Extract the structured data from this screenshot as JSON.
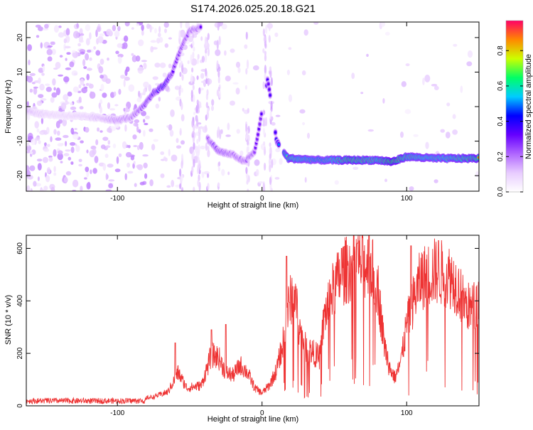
{
  "figure_title": "S174.2026.025.20.18.G21",
  "chart_data": [
    {
      "type": "heatmap",
      "title": "",
      "xlabel": "Height of straight line (km)",
      "ylabel": "Frequency (Hz)",
      "xlim": [
        -163,
        150
      ],
      "ylim": [
        -24.5,
        24.5
      ],
      "xticks": [
        -100,
        0,
        100
      ],
      "yticks": [
        -20,
        -10,
        0,
        10,
        20
      ],
      "colorbar": {
        "label": "Normalized spectral amplitude",
        "range": [
          0,
          0.97
        ],
        "ticks": [
          0,
          0.2,
          0.4,
          0.6,
          0.8
        ],
        "tick_labels": [
          "0.0",
          "0.2",
          "0.4",
          "0.6",
          "0.8"
        ],
        "colormap": [
          "#ffffff",
          "#e8ccff",
          "#b066ff",
          "#6600ff",
          "#0000ff",
          "#00ccff",
          "#00ff66",
          "#ccff00",
          "#ff8800",
          "#ff0066"
        ]
      },
      "ridge": [
        {
          "x": -163,
          "y": -1,
          "a": 0.2
        },
        {
          "x": -155,
          "y": -2,
          "a": 0.15
        },
        {
          "x": -140,
          "y": -2.5,
          "a": 0.12
        },
        {
          "x": -120,
          "y": -3,
          "a": 0.15
        },
        {
          "x": -108,
          "y": -3.5,
          "a": 0.2
        },
        {
          "x": -100,
          "y": -4,
          "a": 0.25
        },
        {
          "x": -90,
          "y": -3,
          "a": 0.25
        },
        {
          "x": -82,
          "y": 0,
          "a": 0.35
        },
        {
          "x": -75,
          "y": 4,
          "a": 0.4
        },
        {
          "x": -68,
          "y": 6,
          "a": 0.5
        },
        {
          "x": -62,
          "y": 10,
          "a": 0.35
        },
        {
          "x": -55,
          "y": 18,
          "a": 0.3
        },
        {
          "x": -50,
          "y": 22,
          "a": 0.3
        },
        {
          "x": -42,
          "y": 23,
          "a": 0.3
        },
        {
          "x": -38,
          "y": -9,
          "a": 0.3
        },
        {
          "x": -30,
          "y": -13,
          "a": 0.35
        },
        {
          "x": -20,
          "y": -14,
          "a": 0.3
        },
        {
          "x": -12,
          "y": -16,
          "a": 0.3
        },
        {
          "x": -5,
          "y": -13,
          "a": 0.3
        },
        {
          "x": 4,
          "y": 8,
          "a": 0.35
        },
        {
          "x": 10,
          "y": -10,
          "a": 0.4
        },
        {
          "x": 18,
          "y": -15,
          "a": 0.8
        },
        {
          "x": 40,
          "y": -15.5,
          "a": 0.7
        },
        {
          "x": 60,
          "y": -15.5,
          "a": 0.85
        },
        {
          "x": 80,
          "y": -15.5,
          "a": 0.8
        },
        {
          "x": 90,
          "y": -16,
          "a": 0.9
        },
        {
          "x": 100,
          "y": -14.5,
          "a": 0.8
        },
        {
          "x": 120,
          "y": -15,
          "a": 0.75
        },
        {
          "x": 150,
          "y": -15,
          "a": 0.85
        }
      ]
    },
    {
      "type": "line",
      "title": "",
      "xlabel": "Height of straight line (km)",
      "ylabel": "SNR (10 * v/v)",
      "xlim": [
        -163,
        150
      ],
      "ylim": [
        0,
        650
      ],
      "xticks": [
        -100,
        0,
        100
      ],
      "yticks": [
        0,
        200,
        400,
        600
      ],
      "series": [
        {
          "color": "#ee3333",
          "envelope": [
            {
              "x": -163,
              "y": 15
            },
            {
              "x": -130,
              "y": 18
            },
            {
              "x": -90,
              "y": 25
            },
            {
              "x": -75,
              "y": 35
            },
            {
              "x": -65,
              "y": 55
            },
            {
              "x": -58,
              "y": 130
            },
            {
              "x": -52,
              "y": 70
            },
            {
              "x": -42,
              "y": 80
            },
            {
              "x": -35,
              "y": 200
            },
            {
              "x": -30,
              "y": 190
            },
            {
              "x": -25,
              "y": 130
            },
            {
              "x": -20,
              "y": 120
            },
            {
              "x": -15,
              "y": 160
            },
            {
              "x": -10,
              "y": 130
            },
            {
              "x": -5,
              "y": 70
            },
            {
              "x": 0,
              "y": 50
            },
            {
              "x": 5,
              "y": 80
            },
            {
              "x": 10,
              "y": 140
            },
            {
              "x": 15,
              "y": 260
            },
            {
              "x": 18,
              "y": 380
            },
            {
              "x": 22,
              "y": 460
            },
            {
              "x": 26,
              "y": 300
            },
            {
              "x": 30,
              "y": 230
            },
            {
              "x": 35,
              "y": 210
            },
            {
              "x": 40,
              "y": 190
            },
            {
              "x": 43,
              "y": 350
            },
            {
              "x": 48,
              "y": 440
            },
            {
              "x": 55,
              "y": 520
            },
            {
              "x": 65,
              "y": 560
            },
            {
              "x": 75,
              "y": 550
            },
            {
              "x": 80,
              "y": 470
            },
            {
              "x": 84,
              "y": 260
            },
            {
              "x": 88,
              "y": 150
            },
            {
              "x": 92,
              "y": 110
            },
            {
              "x": 96,
              "y": 170
            },
            {
              "x": 100,
              "y": 320
            },
            {
              "x": 105,
              "y": 420
            },
            {
              "x": 110,
              "y": 500
            },
            {
              "x": 120,
              "y": 530
            },
            {
              "x": 130,
              "y": 510
            },
            {
              "x": 135,
              "y": 470
            },
            {
              "x": 140,
              "y": 400
            },
            {
              "x": 145,
              "y": 380
            },
            {
              "x": 150,
              "y": 420
            }
          ],
          "peaks": [
            {
              "x": -60,
              "y": 240
            },
            {
              "x": -35,
              "y": 290
            },
            {
              "x": -25,
              "y": 310
            },
            {
              "x": 17,
              "y": 570
            },
            {
              "x": 55,
              "y": 600
            },
            {
              "x": 66,
              "y": 620
            },
            {
              "x": 74,
              "y": 648
            },
            {
              "x": 103,
              "y": 610
            },
            {
              "x": 122,
              "y": 630
            }
          ]
        }
      ]
    }
  ]
}
